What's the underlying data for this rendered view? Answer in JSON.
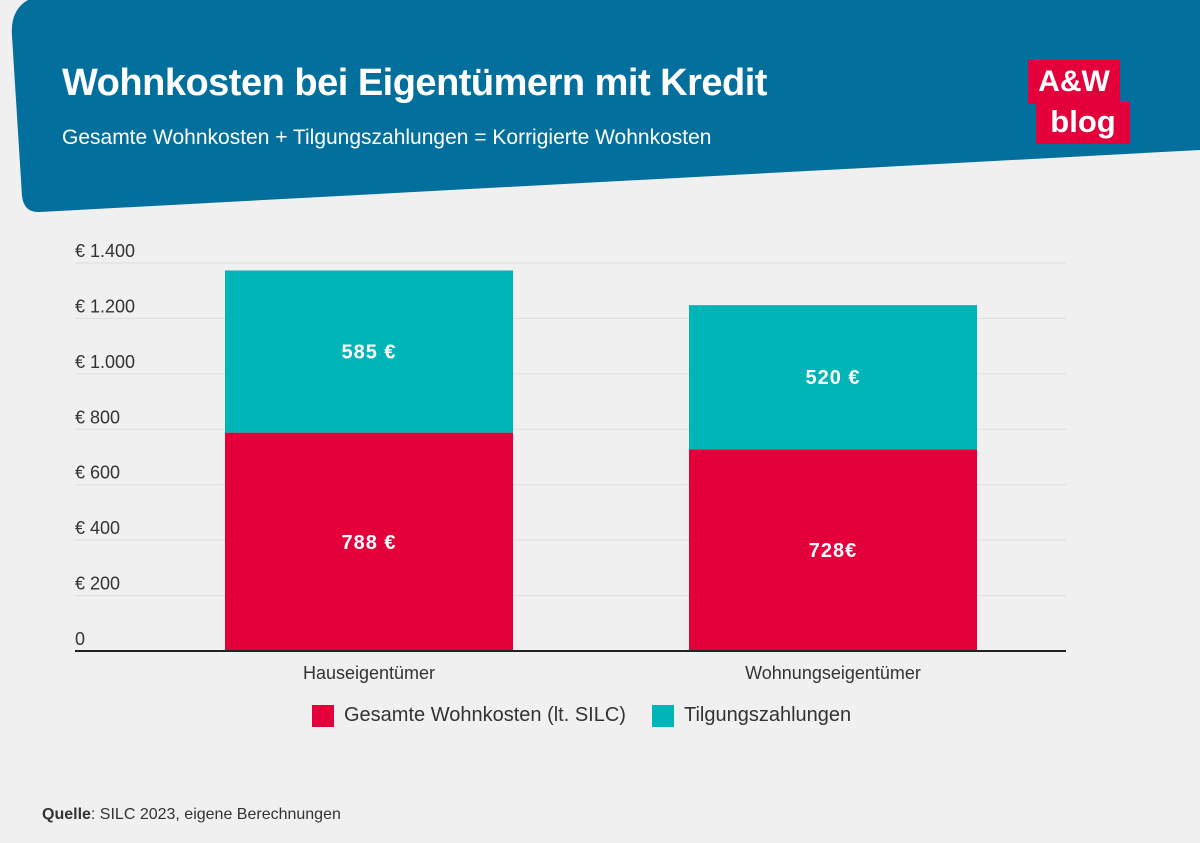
{
  "header": {
    "title": "Wohnkosten bei Eigentümern mit Kredit",
    "subtitle": "Gesamte Wohnkosten + Tilgungszahlungen = Korrigierte Wohnkosten",
    "logo_top": "A&W",
    "logo_bottom": "blog"
  },
  "colors": {
    "header_bg": "#036f9c",
    "series_1": "#e4003a",
    "series_2": "#00b5b8",
    "grid": "#dcdcdc",
    "axis": "#222222"
  },
  "chart_data": {
    "type": "bar",
    "stacked": true,
    "categories": [
      "Hauseigentümer",
      "Wohnungseigentümer"
    ],
    "series": [
      {
        "name": "Gesamte Wohnkosten (lt. SILC)",
        "values": [
          788,
          728
        ],
        "labels": [
          "788 €",
          "728€"
        ]
      },
      {
        "name": "Tilgungszahlungen",
        "values": [
          585,
          520
        ],
        "labels": [
          "585 €",
          "520 €"
        ]
      }
    ],
    "yticks": [
      0,
      200,
      400,
      600,
      800,
      1000,
      1200,
      1400
    ],
    "ytick_labels": [
      "0",
      "€ 200",
      "€ 400",
      "€ 600",
      "€ 800",
      "€ 1.000",
      "€ 1.200",
      "€ 1.400"
    ],
    "ylim": [
      0,
      1400
    ],
    "grid": true,
    "legend_position": "bottom"
  },
  "footer": {
    "source_label": "Quelle",
    "source_text": ": SILC 2023, eigene Berechnungen"
  }
}
